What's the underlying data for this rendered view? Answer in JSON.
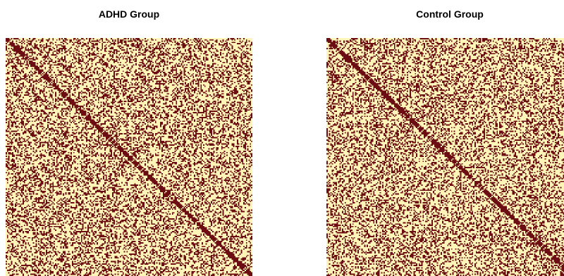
{
  "chart_data": [
    {
      "type": "heatmap",
      "title": "ADHD Group",
      "xlabel": "",
      "ylabel": "",
      "matrix_size": 190,
      "symmetric": true,
      "binary": true,
      "diagonal_value": 1,
      "approx_density": 0.35,
      "colors": {
        "connected": "#6b0d12",
        "absent": "#fff5b8"
      },
      "grid": false,
      "legend": "none"
    },
    {
      "type": "heatmap",
      "title": "Control Group",
      "xlabel": "",
      "ylabel": "",
      "matrix_size": 190,
      "symmetric": true,
      "binary": true,
      "diagonal_value": 1,
      "approx_density": 0.35,
      "colors": {
        "connected": "#6b0d12",
        "absent": "#fff5b8"
      },
      "grid": false,
      "legend": "none"
    }
  ]
}
